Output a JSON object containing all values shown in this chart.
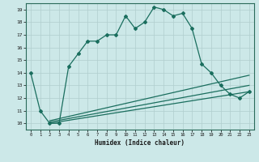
{
  "xlabel": "Humidex (Indice chaleur)",
  "bg_color": "#cce8e8",
  "line_color": "#1a6e5e",
  "xlim": [
    -0.5,
    23.5
  ],
  "ylim": [
    9.5,
    19.5
  ],
  "yticks": [
    10,
    11,
    12,
    13,
    14,
    15,
    16,
    17,
    18,
    19
  ],
  "xticks": [
    0,
    1,
    2,
    3,
    4,
    5,
    6,
    7,
    8,
    9,
    10,
    11,
    12,
    13,
    14,
    15,
    16,
    17,
    18,
    19,
    20,
    21,
    22,
    23
  ],
  "main_x": [
    0,
    1,
    2,
    3,
    4,
    5,
    6,
    7,
    8,
    9,
    10,
    11,
    12,
    13,
    14,
    15,
    16,
    17,
    18,
    19,
    20,
    21,
    22,
    23
  ],
  "main_y": [
    14,
    11,
    10,
    10,
    14.5,
    15.5,
    16.5,
    16.5,
    17,
    17,
    18.5,
    17.5,
    18,
    19.2,
    19,
    18.5,
    18.7,
    17.5,
    14.7,
    14,
    13,
    12.3,
    12,
    12.5
  ],
  "line1_x": [
    2,
    23
  ],
  "line1_y": [
    10.0,
    12.5
  ],
  "line2_x": [
    2,
    23
  ],
  "line2_y": [
    10.1,
    13.0
  ],
  "line3_x": [
    2,
    23
  ],
  "line3_y": [
    10.2,
    13.8
  ]
}
